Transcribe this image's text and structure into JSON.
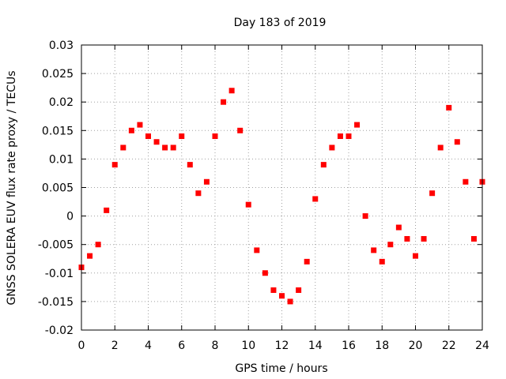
{
  "chart_data": {
    "type": "scatter",
    "title": "Day 183 of 2019",
    "xlabel": "GPS time / hours",
    "ylabel": "GNSS SOLERA EUV flux rate proxy / TECUs",
    "xlim": [
      0,
      24
    ],
    "ylim": [
      -0.02,
      0.03
    ],
    "xticks": [
      0,
      2,
      4,
      6,
      8,
      10,
      12,
      14,
      16,
      18,
      20,
      22,
      24
    ],
    "yticks": [
      -0.02,
      -0.015,
      -0.01,
      -0.005,
      0,
      0.005,
      0.01,
      0.015,
      0.02,
      0.025,
      0.03
    ],
    "ytick_labels": [
      "-0.02",
      "-0.015",
      "-0.01",
      "-0.005",
      "0",
      "0.005",
      "0.01",
      "0.015",
      "0.02",
      "0.025",
      "0.03"
    ],
    "grid": true,
    "marker": "square",
    "series": [
      {
        "color": "#ff0000",
        "x": [
          0.0,
          0.5,
          1.0,
          1.5,
          2.0,
          2.5,
          3.0,
          3.5,
          4.0,
          4.5,
          5.0,
          5.5,
          6.0,
          6.5,
          7.0,
          7.5,
          8.0,
          8.5,
          9.0,
          9.5,
          10.0,
          10.5,
          11.0,
          11.5,
          12.0,
          12.5,
          13.0,
          13.5,
          14.0,
          14.5,
          15.0,
          15.5,
          16.0,
          16.5,
          17.0,
          17.5,
          18.0,
          18.5,
          19.0,
          19.5,
          20.0,
          20.5,
          21.0,
          21.5,
          22.0,
          22.5,
          23.0,
          23.5,
          24.0
        ],
        "y": [
          -0.009,
          -0.007,
          -0.005,
          0.001,
          0.009,
          0.012,
          0.015,
          0.016,
          0.014,
          0.013,
          0.012,
          0.012,
          0.014,
          0.009,
          0.004,
          0.006,
          0.014,
          0.02,
          0.022,
          0.015,
          0.002,
          -0.006,
          -0.01,
          -0.013,
          -0.014,
          -0.015,
          -0.013,
          -0.008,
          0.003,
          0.009,
          0.012,
          0.014,
          0.014,
          0.016,
          0.0,
          -0.006,
          -0.008,
          -0.005,
          -0.002,
          -0.004,
          -0.007,
          -0.004,
          0.004,
          0.012,
          0.019,
          0.013,
          0.006,
          -0.004,
          0.006
        ]
      }
    ]
  }
}
